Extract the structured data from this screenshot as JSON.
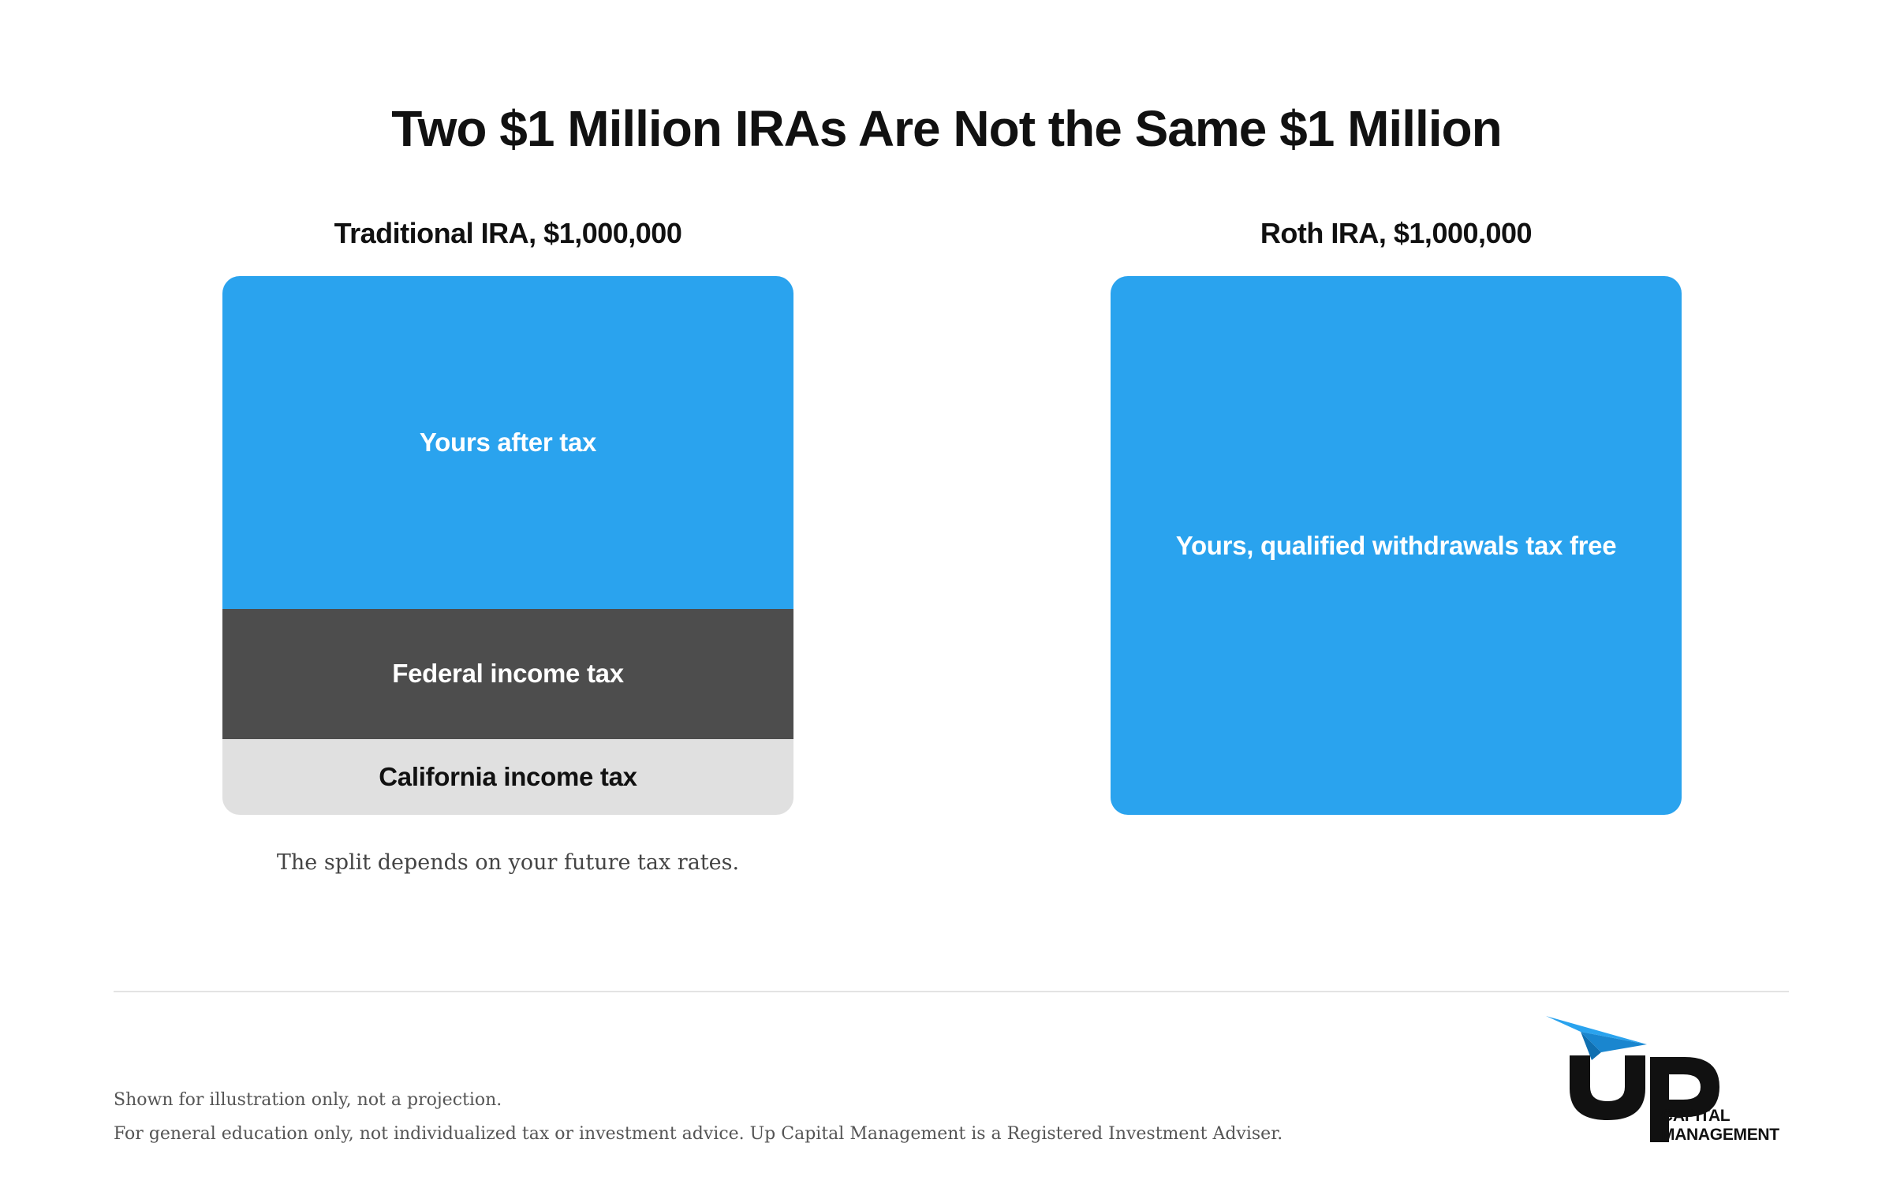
{
  "title": "Two $1 Million IRAs Are Not the Same $1 Million",
  "traditional": {
    "heading": "Traditional IRA, $1,000,000",
    "segments": [
      {
        "label": "Yours after tax",
        "share": 0.618,
        "color": "#2aa3ee"
      },
      {
        "label": "Federal income tax",
        "share": 0.241,
        "color": "#4d4d4d"
      },
      {
        "label": "California income tax",
        "share": 0.141,
        "color": "#e0e0e0"
      }
    ],
    "note": "The split depends on your future tax rates."
  },
  "roth": {
    "heading": "Roth IRA, $1,000,000",
    "segments": [
      {
        "label": "Yours, qualified withdrawals tax free",
        "share": 1.0,
        "color": "#2aa3ee"
      }
    ]
  },
  "footer": {
    "line1": "Shown for illustration only, not a projection.",
    "line2": "For general education only, not individualized tax or investment advice. Up Capital Management is a Registered Investment Adviser."
  },
  "logo": {
    "mark": "UP",
    "line1": "CAPITAL",
    "line2": "MANAGEMENT",
    "icon": "paper-plane-icon"
  }
}
